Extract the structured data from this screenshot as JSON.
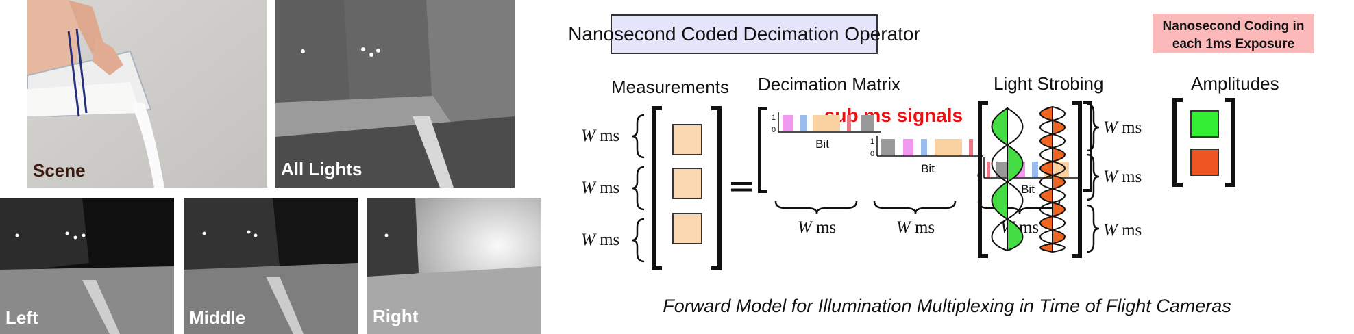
{
  "photos": {
    "scene": "Scene",
    "all_lights": "All Lights",
    "left": "Left",
    "middle": "Middle",
    "right": "Right"
  },
  "diagram": {
    "title": "Nanosecond Coded Decimation Operator",
    "note_line1": "Nanosecond Coding in",
    "note_line2": "each 1ms Exposure",
    "measurements": "Measurements",
    "decimation_matrix": "Decimation Matrix",
    "light_strobing": "Light Strobing",
    "amplitudes": "Amplitudes",
    "sub_ms": "sub ms signals",
    "w_ms": "W ms",
    "w_symbol": "W",
    "ms_unit": "ms",
    "bit": "Bit",
    "one": "1",
    "zero": "0",
    "equals": "=",
    "caption": "Forward Model for Illumination Multiplexing in Time of Flight Cameras"
  },
  "colors": {
    "title_box": "#e4e4fb",
    "note_box": "#fbb9b9",
    "measurement_fill": "#fad7b0",
    "red_text": "#ee1111",
    "green_wave": "#44dd44",
    "orange_wave": "#ee6622",
    "amp_green": "#33ee33",
    "amp_orange": "#ee5522",
    "bar_pink": "#ee99ee",
    "bar_blue": "#99bbee",
    "bar_peach": "#fad1a0",
    "bar_red": "#ee7788",
    "bar_gray": "#999999"
  }
}
